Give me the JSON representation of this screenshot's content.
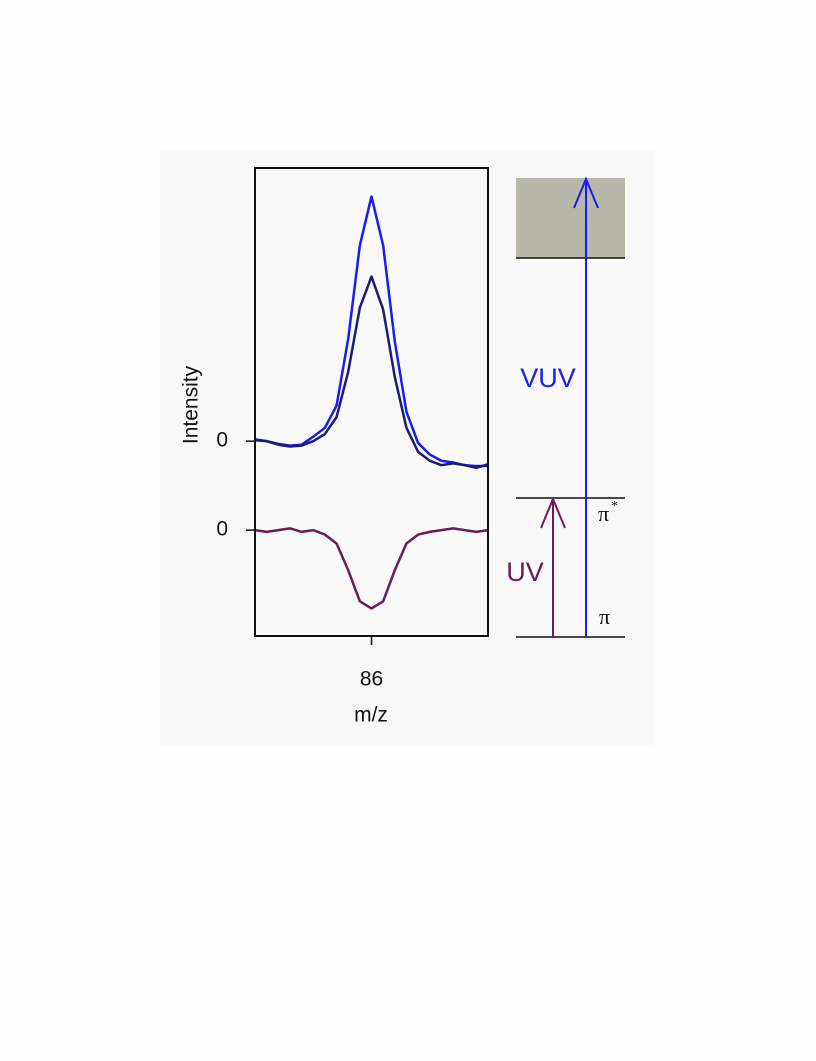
{
  "chart_data": {
    "type": "line",
    "y_label": "Intensity",
    "x_label": "m/z",
    "x": [
      85.6,
      85.64,
      85.68,
      85.72,
      85.76,
      85.8,
      85.84,
      85.88,
      85.92,
      85.96,
      86.0,
      86.04,
      86.08,
      86.12,
      86.16,
      86.2,
      86.24,
      86.28,
      86.32,
      86.36,
      86.4
    ],
    "series": [
      {
        "color": "#1c1cf0",
        "values": [
          0.02,
          0.0,
          -0.03,
          -0.05,
          -0.04,
          0.05,
          0.15,
          0.4,
          1.15,
          2.2,
          2.75,
          2.2,
          1.12,
          0.33,
          -0.02,
          -0.15,
          -0.22,
          -0.24,
          -0.27,
          -0.28,
          -0.28
        ]
      },
      {
        "color": "#1c1c70",
        "values": [
          0.01,
          0.0,
          -0.04,
          -0.06,
          -0.05,
          0.0,
          0.08,
          0.27,
          0.78,
          1.5,
          1.85,
          1.48,
          0.72,
          0.15,
          -0.12,
          -0.22,
          -0.27,
          -0.25,
          -0.27,
          -0.3,
          -0.26
        ]
      },
      {
        "color": "#6b1a5e",
        "values": [
          -1.0,
          -1.02,
          -1.0,
          -0.98,
          -1.02,
          -1.0,
          -1.05,
          -1.15,
          -1.45,
          -1.8,
          -1.88,
          -1.8,
          -1.45,
          -1.15,
          -1.05,
          -1.02,
          -1.0,
          -0.98,
          -1.0,
          -1.02,
          -1.0
        ]
      }
    ],
    "xlim": [
      85.6,
      86.4
    ],
    "xticks": [
      86
    ],
    "ylim": [
      -2.19,
      3.07
    ],
    "yticks": [
      0,
      {
        "value": -1,
        "label": "0"
      }
    ]
  },
  "energy_diagram": {
    "vuv": "VUV",
    "uv": "UV",
    "pi": "π",
    "pi_star": "π",
    "pi_star_sup": "*"
  }
}
